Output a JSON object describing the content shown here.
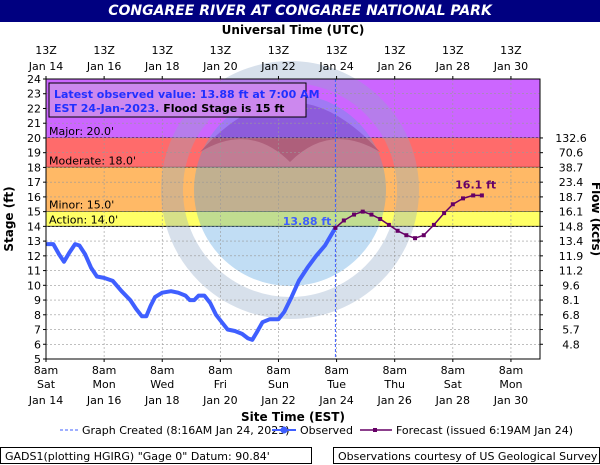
{
  "title": "CONGAREE RIVER AT CONGAREE NATIONAL PARK",
  "footer": {
    "site_info": "GADS1(plotting HGIRG) \"Gage 0\" Datum: 90.84'",
    "credit": "Observations courtesy of US Geological Survey"
  },
  "colors": {
    "title_bg": "#000080",
    "major": "#cc66ff",
    "moderate": "#ff6b6b",
    "minor": "#ffb966",
    "action": "#ffff66",
    "observed": "#3f5fff",
    "forecast": "#660066"
  },
  "chart_data": {
    "type": "line",
    "title": "CONGAREE RIVER AT CONGAREE NATIONAL PARK",
    "top_axis_label": "Universal Time (UTC)",
    "xlabel": "Site Time (EST)",
    "ylabel": "Stage (ft)",
    "y2label": "Flow (kcfs)",
    "ylim": [
      5,
      24
    ],
    "xlim": [
      0,
      17
    ],
    "grid": true,
    "bottom_ticks": [
      {
        "x": 0,
        "line1": "8am",
        "line2": "Sat",
        "line3": "Jan 14"
      },
      {
        "x": 2,
        "line1": "8am",
        "line2": "Mon",
        "line3": "Jan 16"
      },
      {
        "x": 4,
        "line1": "8am",
        "line2": "Wed",
        "line3": "Jan 18"
      },
      {
        "x": 6,
        "line1": "8am",
        "line2": "Fri",
        "line3": "Jan 20"
      },
      {
        "x": 8,
        "line1": "8am",
        "line2": "Sun",
        "line3": "Jan 22"
      },
      {
        "x": 10,
        "line1": "8am",
        "line2": "Tue",
        "line3": "Jan 24"
      },
      {
        "x": 12,
        "line1": "8am",
        "line2": "Thu",
        "line3": "Jan 26"
      },
      {
        "x": 14,
        "line1": "8am",
        "line2": "Sat",
        "line3": "Jan 28"
      },
      {
        "x": 16,
        "line1": "8am",
        "line2": "Mon",
        "line3": "Jan 30"
      }
    ],
    "top_ticks": [
      {
        "x": 0,
        "line1": "13Z",
        "line2": "Jan 14"
      },
      {
        "x": 2,
        "line1": "13Z",
        "line2": "Jan 16"
      },
      {
        "x": 4,
        "line1": "13Z",
        "line2": "Jan 18"
      },
      {
        "x": 6,
        "line1": "13Z",
        "line2": "Jan 20"
      },
      {
        "x": 8,
        "line1": "13Z",
        "line2": "Jan 22"
      },
      {
        "x": 10,
        "line1": "13Z",
        "line2": "Jan 24"
      },
      {
        "x": 12,
        "line1": "13Z",
        "line2": "Jan 26"
      },
      {
        "x": 14,
        "line1": "13Z",
        "line2": "Jan 28"
      },
      {
        "x": 16,
        "line1": "13Z",
        "line2": "Jan 30"
      }
    ],
    "yticks": [
      5,
      6,
      7,
      8,
      9,
      10,
      11,
      12,
      13,
      14,
      15,
      16,
      17,
      18,
      19,
      20,
      21,
      22,
      23,
      24
    ],
    "flow_ticks": [
      {
        "y": 6,
        "label": "4.8"
      },
      {
        "y": 7,
        "label": "5.7"
      },
      {
        "y": 8,
        "label": "6.8"
      },
      {
        "y": 9,
        "label": "8.1"
      },
      {
        "y": 10,
        "label": "9.6"
      },
      {
        "y": 11,
        "label": "11.2"
      },
      {
        "y": 12,
        "label": "11.9"
      },
      {
        "y": 13,
        "label": "13.4"
      },
      {
        "y": 14,
        "label": "14.8"
      },
      {
        "y": 15,
        "label": "16.1"
      },
      {
        "y": 16,
        "label": "18.7"
      },
      {
        "y": 17,
        "label": "23.4"
      },
      {
        "y": 18,
        "label": "38.7"
      },
      {
        "y": 19,
        "label": "70.6"
      },
      {
        "y": 20,
        "label": "132.6"
      }
    ],
    "flood_categories": [
      {
        "name": "Major",
        "label": "Major: 20.0'",
        "from": 20,
        "to": 24,
        "color": "#cc66ff"
      },
      {
        "name": "Moderate",
        "label": "Moderate: 18.0'",
        "from": 18,
        "to": 20,
        "color": "#ff6b6b"
      },
      {
        "name": "Minor",
        "label": "Minor: 15.0'",
        "from": 15,
        "to": 18,
        "color": "#ffb966"
      },
      {
        "name": "Action",
        "label": "Action: 14.0'",
        "from": 14,
        "to": 15,
        "color": "#ffff66"
      }
    ],
    "created_x": 9.96,
    "series": [
      {
        "name": "Observed",
        "color": "#3f5fff",
        "points": [
          [
            0.05,
            12.8
          ],
          [
            0.25,
            12.8
          ],
          [
            0.45,
            12.1
          ],
          [
            0.62,
            11.6
          ],
          [
            0.8,
            12.2
          ],
          [
            1.0,
            12.8
          ],
          [
            1.15,
            12.7
          ],
          [
            1.35,
            12.1
          ],
          [
            1.55,
            11.2
          ],
          [
            1.75,
            10.6
          ],
          [
            2.0,
            10.5
          ],
          [
            2.3,
            10.3
          ],
          [
            2.6,
            9.6
          ],
          [
            2.9,
            9.0
          ],
          [
            3.1,
            8.4
          ],
          [
            3.3,
            7.9
          ],
          [
            3.45,
            7.9
          ],
          [
            3.6,
            8.6
          ],
          [
            3.75,
            9.2
          ],
          [
            4.0,
            9.5
          ],
          [
            4.3,
            9.6
          ],
          [
            4.55,
            9.5
          ],
          [
            4.8,
            9.3
          ],
          [
            4.95,
            9.0
          ],
          [
            5.1,
            9.0
          ],
          [
            5.25,
            9.3
          ],
          [
            5.45,
            9.3
          ],
          [
            5.65,
            8.8
          ],
          [
            5.85,
            8.0
          ],
          [
            6.05,
            7.5
          ],
          [
            6.25,
            7.0
          ],
          [
            6.5,
            6.9
          ],
          [
            6.75,
            6.7
          ],
          [
            6.95,
            6.4
          ],
          [
            7.1,
            6.3
          ],
          [
            7.25,
            6.8
          ],
          [
            7.45,
            7.5
          ],
          [
            7.7,
            7.7
          ],
          [
            8.0,
            7.7
          ],
          [
            8.2,
            8.2
          ],
          [
            8.45,
            9.2
          ],
          [
            8.7,
            10.3
          ],
          [
            9.0,
            11.2
          ],
          [
            9.3,
            12.0
          ],
          [
            9.6,
            12.7
          ],
          [
            9.96,
            13.9
          ]
        ]
      },
      {
        "name": "Forecast",
        "color": "#660066",
        "points": [
          [
            9.96,
            13.9
          ],
          [
            10.25,
            14.4
          ],
          [
            10.6,
            14.8
          ],
          [
            10.9,
            15.0
          ],
          [
            11.2,
            14.8
          ],
          [
            11.5,
            14.5
          ],
          [
            11.8,
            14.1
          ],
          [
            12.1,
            13.7
          ],
          [
            12.4,
            13.4
          ],
          [
            12.7,
            13.2
          ],
          [
            13.0,
            13.4
          ],
          [
            13.35,
            14.1
          ],
          [
            13.7,
            14.9
          ],
          [
            14.0,
            15.5
          ],
          [
            14.35,
            15.9
          ],
          [
            14.7,
            16.1
          ],
          [
            15.0,
            16.1
          ]
        ]
      }
    ],
    "annotations": [
      {
        "text": "13.88 ft",
        "x": 9.96,
        "y": 13.9,
        "color": "#3f5fff"
      },
      {
        "text": "16.1 ft",
        "x": 14.7,
        "y": 16.1,
        "color": "#660066"
      }
    ],
    "info_box": {
      "line1": "Latest observed value: 13.88 ft at 7:00 AM",
      "line2a": "EST 24-Jan-2023.",
      "line2b": "Flood Stage is 15 ft"
    },
    "legend": {
      "created": "Graph Created (8:16AM Jan 24, 2023)",
      "observed": "Observed",
      "forecast": "Forecast (issued 6:19AM Jan 24)"
    }
  }
}
